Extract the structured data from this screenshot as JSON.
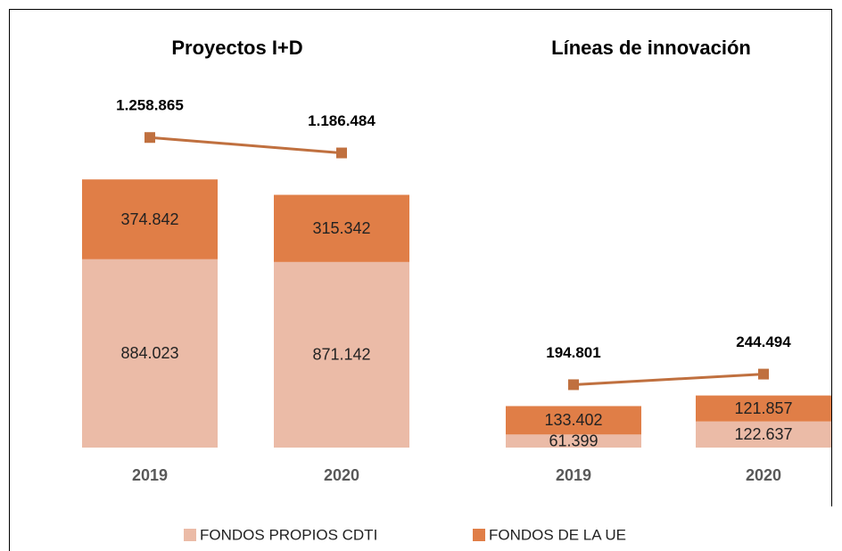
{
  "chart_data": [
    {
      "type": "bar",
      "stacked": true,
      "title": "Proyectos I+D",
      "categories": [
        "2019",
        "2020"
      ],
      "series": [
        {
          "name": "FONDOS PROPIOS CDTI",
          "color": "#ebbba7",
          "values": [
            884023,
            871142
          ],
          "value_labels": [
            "884.023",
            "871.142"
          ]
        },
        {
          "name": "FONDOS DE LA UE",
          "color": "#e07e47",
          "values": [
            374842,
            315342
          ],
          "value_labels": [
            "374.842",
            "315.342"
          ]
        }
      ],
      "totals": {
        "color": "#c0703f",
        "values": [
          1258865,
          1186484
        ],
        "value_labels": [
          "1.258.865",
          "1.186.484"
        ]
      },
      "ylim": [
        0,
        1850000
      ]
    },
    {
      "type": "bar",
      "stacked": true,
      "title": "Líneas de innovación",
      "categories": [
        "2019",
        "2020"
      ],
      "series": [
        {
          "color": "#ebbba7",
          "values": [
            61399,
            122637
          ],
          "value_labels": [
            "61.399",
            "122.637"
          ]
        },
        {
          "color": "#e07e47",
          "values": [
            133402,
            121857
          ],
          "value_labels": [
            "133.402",
            "121.857"
          ]
        }
      ],
      "totals": {
        "color": "#c0703f",
        "values": [
          194801,
          244494
        ],
        "value_labels": [
          "194.801",
          "244.494"
        ]
      },
      "ylim": [
        0,
        1850000
      ]
    }
  ]
}
